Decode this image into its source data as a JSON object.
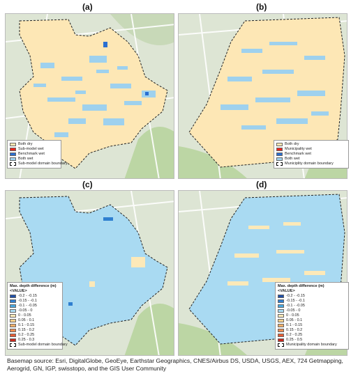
{
  "panels": [
    {
      "label": "(a)"
    },
    {
      "label": "(b)"
    },
    {
      "label": "(c)"
    },
    {
      "label": "(d)"
    }
  ],
  "legend_a": {
    "items": [
      {
        "label": "Both dry",
        "color": "#fde7b5"
      },
      {
        "label": "Sub-model wet",
        "color": "#e8231c"
      },
      {
        "label": "Benchmark wet",
        "color": "#2a6fd1"
      },
      {
        "label": "Both wet",
        "color": "#9ed1ee"
      },
      {
        "label": "Sub-model domain boundary",
        "color": "dashed"
      }
    ]
  },
  "legend_b": {
    "items": [
      {
        "label": "Both dry",
        "color": "#fde7b5"
      },
      {
        "label": "Municipality wet",
        "color": "#e8231c"
      },
      {
        "label": "Benchmark wet",
        "color": "#2a6fd1"
      },
      {
        "label": "Both wet",
        "color": "#9ed1ee"
      },
      {
        "label": "Municiplity domain boundary",
        "color": "dashed"
      }
    ]
  },
  "legend_c": {
    "title": "Max. depth difference (m)",
    "subtitle": "<VALUE>",
    "items": [
      {
        "label": "-0.2 - -0.15",
        "color": "#2050a8"
      },
      {
        "label": "-0.15 - -0.1",
        "color": "#2f7fd0"
      },
      {
        "label": "-0.1 - -0.05",
        "color": "#4aa8e0"
      },
      {
        "label": "-0.05 - 0",
        "color": "#a9daf2"
      },
      {
        "label": "0 - 0.05",
        "color": "#fde9b8"
      },
      {
        "label": "0.05 - 0.1",
        "color": "#f7cf8a"
      },
      {
        "label": "0.1 - 0.15",
        "color": "#f3b06a"
      },
      {
        "label": "0.15 - 0.2",
        "color": "#ee8b50"
      },
      {
        "label": "0.2 - 0.25",
        "color": "#e45c36"
      },
      {
        "label": "0.25 - 0.3",
        "color": "#c9281e"
      }
    ],
    "boundary_label": "Sub-model domain boundary"
  },
  "legend_d": {
    "title": "Max. depth difference (m)",
    "subtitle": "<VALUE>",
    "items": [
      {
        "label": "-0.2 - -0.15",
        "color": "#2050a8"
      },
      {
        "label": "-0.15 - -0.1",
        "color": "#2f7fd0"
      },
      {
        "label": "-0.1 - -0.05",
        "color": "#4aa8e0"
      },
      {
        "label": "-0.05 - 0",
        "color": "#a9daf2"
      },
      {
        "label": "0 - 0.05",
        "color": "#fde9b8"
      },
      {
        "label": "0.05 - 0.1",
        "color": "#f7cf8a"
      },
      {
        "label": "0.1 - 0.15",
        "color": "#f3b06a"
      },
      {
        "label": "0.15 - 0.2",
        "color": "#ee8b50"
      },
      {
        "label": "0.2 - 0.25",
        "color": "#e45c36"
      },
      {
        "label": "0.25 - 0.5",
        "color": "#c9281e"
      }
    ],
    "boundary_label": "Municipality domain boundary"
  },
  "caption": "Basemap source: Esri, DigitalGlobe, GeoEye, Earthstar Geographics, CNES/Airbus DS, USDA, USGS, AEX, 724 Getmapping, Aerogrid, GN, IGP, swisstopo, and the GIS User Community",
  "colors": {
    "land": "#dfe6d6",
    "water": "#b9d9a8",
    "road": "#ffffff",
    "dry": "#fde7b5",
    "wet": "#9ed1ee",
    "diff_base": "#a9daf2"
  }
}
